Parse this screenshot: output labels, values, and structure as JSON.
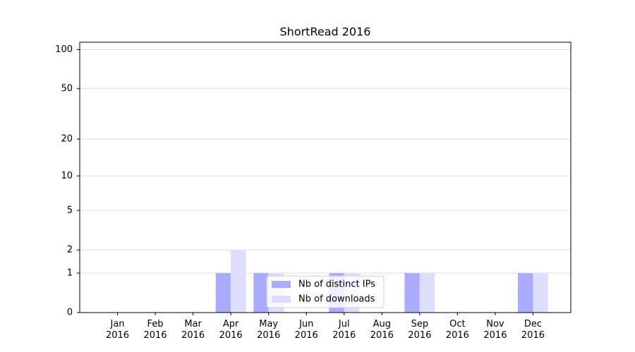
{
  "chart_data": {
    "type": "bar",
    "title": "ShortRead 2016",
    "categories": [
      "Jan\n2016",
      "Feb\n2016",
      "Mar\n2016",
      "Apr\n2016",
      "May\n2016",
      "Jun\n2016",
      "Jul\n2016",
      "Aug\n2016",
      "Sep\n2016",
      "Oct\n2016",
      "Nov\n2016",
      "Dec\n2016"
    ],
    "series": [
      {
        "name": "Nb of distinct IPs",
        "color": "#aaaaff",
        "values": [
          0,
          0,
          0,
          1,
          1,
          0,
          1,
          0,
          1,
          0,
          0,
          1
        ]
      },
      {
        "name": "Nb of downloads",
        "color": "#ddddff",
        "values": [
          0,
          0,
          0,
          2,
          1,
          0,
          1,
          0,
          1,
          0,
          0,
          1
        ]
      }
    ],
    "yscale": "log1p",
    "ylim": [
      0,
      114
    ],
    "yticks": [
      0,
      1,
      2,
      5,
      10,
      20,
      50,
      100
    ],
    "grid": true,
    "legend": "lower center"
  }
}
